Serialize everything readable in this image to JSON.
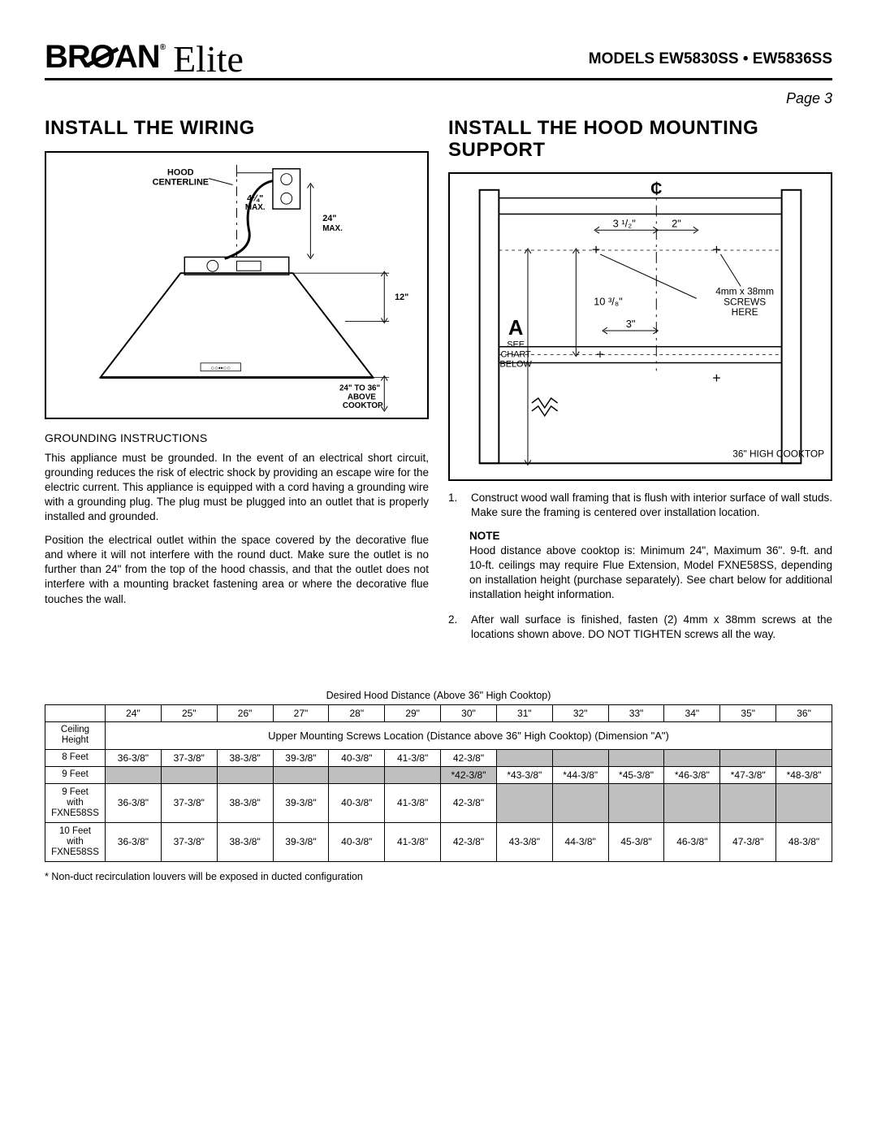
{
  "header": {
    "brand_main": "BROAN",
    "brand_sub": "Elite",
    "models_label": "MODELS  EW5830SS • EW5836SS",
    "page_label": "Page 3"
  },
  "left": {
    "heading": "INSTALL THE WIRING",
    "grounding_heading": "GROUNDING INSTRUCTIONS",
    "para1": "This appliance must be grounded. In the event of an electrical short circuit, grounding reduces the risk of electric shock by providing an escape wire for the electric current. This appliance is equipped with a cord having a grounding wire with a grounding plug. The plug must be plugged into an outlet that is properly installed and grounded.",
    "para2": "Position the electrical outlet within the space covered by the decorative flue and where it will not interfere with the round duct. Make sure the outlet is no further than 24\" from the top of the hood chassis, and that the outlet does not interfere with a mounting bracket fastening area or where the decorative flue touches the wall.",
    "figure": {
      "hood_centerline": "HOOD CENTERLINE",
      "four_quarter": "4¼\" MAX.",
      "twentyfour_max": "24\" MAX.",
      "twelve": "12\"",
      "cooktop": "24\" TO 36\" ABOVE COOKTOP"
    }
  },
  "right": {
    "heading": "INSTALL THE HOOD MOUNTING SUPPORT",
    "step1": "Construct wood wall framing that is flush with interior surface of wall studs. Make sure the framing is centered over installation location.",
    "note_label": "NOTE",
    "note_body": "Hood distance above cooktop is: Minimum 24\", Maximum 36\". 9-ft. and 10-ft. ceilings may require Flue Extension, Model FXNE58SS, depending on installation height (purchase separately). See chart below for additional installation height information.",
    "step2": "After wall surface is finished, fasten (2) 4mm x 38mm screws at the locations shown above. DO NOT TIGHTEN screws all the way.",
    "figure": {
      "a": "A",
      "see_chart": "SEE CHART BELOW",
      "ten38": "10 ³/₈\"",
      "three_half": "3 ¹/₂\"",
      "two": "2\"",
      "three": "3\"",
      "screws": "4mm x 38mm SCREWS HERE",
      "cooktop36": "36\" HIGH COOKTOP"
    }
  },
  "table": {
    "caption": "Desired Hood Distance (Above 36\" High Cooktop)",
    "span_header": "Upper Mounting Screws Location (Distance above 36\" High Cooktop) (Dimension \"A\")",
    "inch_cols": [
      "24\"",
      "25\"",
      "26\"",
      "27\"",
      "28\"",
      "29\"",
      "30\"",
      "31\"",
      "32\"",
      "33\"",
      "34\"",
      "35\"",
      "36\""
    ],
    "ceiling_label": "Ceiling Height",
    "rows": [
      {
        "label": "8 Feet",
        "cells": [
          "36-3/8\"",
          "37-3/8\"",
          "38-3/8\"",
          "39-3/8\"",
          "40-3/8\"",
          "41-3/8\"",
          "42-3/8\"",
          "",
          "",
          "",
          "",
          "",
          ""
        ],
        "gray_from": 7
      },
      {
        "label": "9 Feet",
        "cells": [
          "",
          "",
          "",
          "",
          "",
          "",
          "*42-3/8\"",
          "*43-3/8\"",
          "*44-3/8\"",
          "*45-3/8\"",
          "*46-3/8\"",
          "*47-3/8\"",
          "*48-3/8\""
        ],
        "gray_to": 6
      },
      {
        "label": "9 Feet with FXNE58SS",
        "cells": [
          "36-3/8\"",
          "37-3/8\"",
          "38-3/8\"",
          "39-3/8\"",
          "40-3/8\"",
          "41-3/8\"",
          "42-3/8\"",
          "",
          "",
          "",
          "",
          "",
          ""
        ],
        "gray_from": 7,
        "tall": true
      },
      {
        "label": "10 Feet with FXNE58SS",
        "cells": [
          "36-3/8\"",
          "37-3/8\"",
          "38-3/8\"",
          "39-3/8\"",
          "40-3/8\"",
          "41-3/8\"",
          "42-3/8\"",
          "43-3/8\"",
          "44-3/8\"",
          "45-3/8\"",
          "46-3/8\"",
          "47-3/8\"",
          "48-3/8\""
        ],
        "tall": true
      }
    ],
    "footnote": "* Non-duct recirculation louvers will be exposed in ducted configuration"
  }
}
